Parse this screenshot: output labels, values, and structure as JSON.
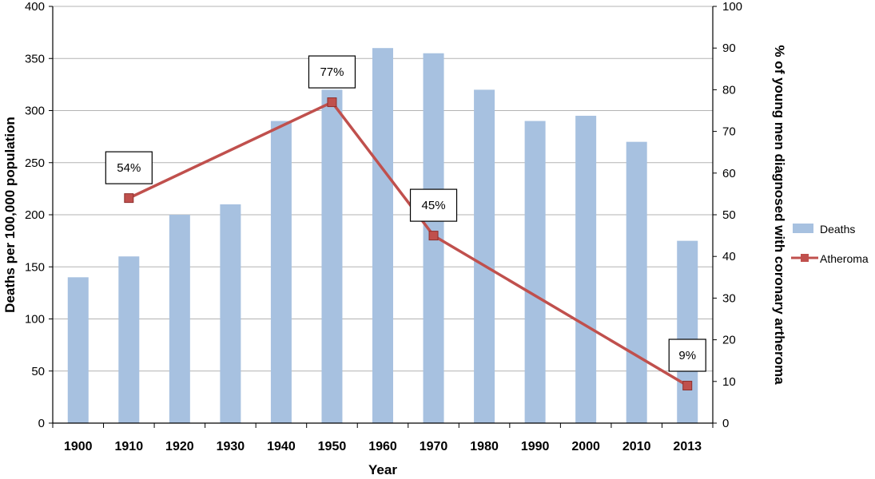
{
  "chart_data": {
    "type": "bar",
    "title": "",
    "xlabel": "Year",
    "ylabel": "Deaths per 100,000 population",
    "y2label": "% of young men diagnosed with coronary artheroma",
    "categories": [
      "1900",
      "1910",
      "1920",
      "1930",
      "1940",
      "1950",
      "1960",
      "1970",
      "1980",
      "1990",
      "2000",
      "2010",
      "2013"
    ],
    "ylim": [
      0,
      400
    ],
    "yticks": [
      "0",
      "50",
      "100",
      "150",
      "200",
      "250",
      "300",
      "350",
      "400"
    ],
    "y2lim": [
      0,
      100
    ],
    "y2ticks": [
      "0",
      "10",
      "20",
      "30",
      "40",
      "50",
      "60",
      "70",
      "80",
      "90",
      "100"
    ],
    "grid": true,
    "legend_position": "right",
    "series": [
      {
        "name": "Deaths",
        "type": "bar",
        "axis": "left",
        "color": "#a7c1e0",
        "values": [
          140,
          160,
          200,
          210,
          290,
          320,
          360,
          355,
          320,
          290,
          295,
          270,
          175
        ]
      },
      {
        "name": "Atheroma",
        "type": "line",
        "axis": "right",
        "color": "#c0504d",
        "marker": "square",
        "points": [
          {
            "x": "1910",
            "y": 54,
            "label": "54%"
          },
          {
            "x": "1950",
            "y": 77,
            "label": "77%"
          },
          {
            "x": "1970",
            "y": 45,
            "label": "45%"
          },
          {
            "x": "2013",
            "y": 9,
            "label": "9%"
          }
        ]
      }
    ]
  }
}
